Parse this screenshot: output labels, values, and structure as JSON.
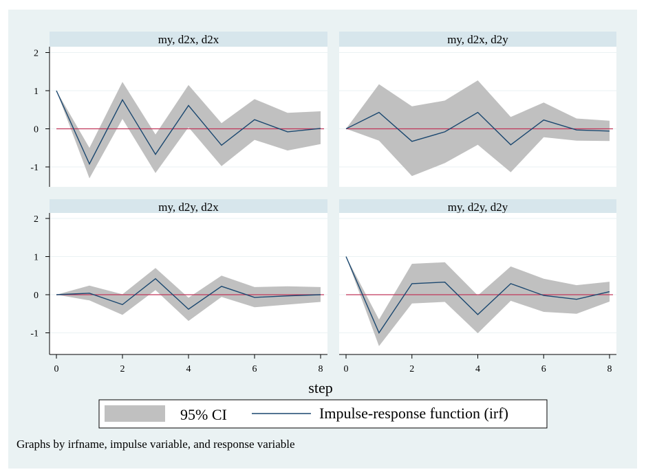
{
  "chart_data": {
    "type": "line",
    "note": "Graphs by irfname, impulse variable, and response variable",
    "xlabel": "step",
    "xlim": [
      0,
      8
    ],
    "ylim": [
      -1.55,
      2.2
    ],
    "x_ticks": [
      0,
      2,
      4,
      6,
      8
    ],
    "y_ticks": [
      -1,
      0,
      1,
      2
    ],
    "legend": {
      "position": "bottom",
      "entries": [
        {
          "label": "95% CI",
          "kind": "area",
          "color": "#c0c0c0"
        },
        {
          "label": "Impulse-response function (irf)",
          "kind": "line",
          "color": "#1a476f"
        }
      ]
    },
    "colors": {
      "ci": "#c0c0c0",
      "irf": "#1a476f",
      "zero_line": "#c0365a",
      "strip": "#d7e6ec",
      "plot_bg": "#ffffff",
      "outer_bg": "#eaf2f3"
    },
    "panels": [
      {
        "title": "my, d2x, d2x",
        "x": [
          0,
          1,
          2,
          3,
          4,
          5,
          6,
          7,
          8
        ],
        "irf": [
          1.0,
          -0.92,
          0.76,
          -0.67,
          0.61,
          -0.43,
          0.24,
          -0.08,
          0.01
        ],
        "ci_upper": [
          1.0,
          -0.5,
          1.23,
          -0.15,
          1.15,
          0.15,
          0.78,
          0.42,
          0.46
        ],
        "ci_lower": [
          1.0,
          -1.3,
          0.26,
          -1.16,
          0.04,
          -0.98,
          -0.29,
          -0.57,
          -0.4
        ]
      },
      {
        "title": "my, d2x, d2y",
        "x": [
          0,
          1,
          2,
          3,
          4,
          5,
          6,
          7,
          8
        ],
        "irf": [
          0.0,
          0.43,
          -0.33,
          -0.08,
          0.43,
          -0.42,
          0.23,
          -0.03,
          -0.06
        ],
        "ci_upper": [
          0.0,
          1.17,
          0.59,
          0.74,
          1.27,
          0.31,
          0.69,
          0.27,
          0.21
        ],
        "ci_lower": [
          0.0,
          -0.31,
          -1.24,
          -0.9,
          -0.42,
          -1.14,
          -0.22,
          -0.31,
          -0.32
        ]
      },
      {
        "title": "my, d2y, d2x",
        "x": [
          0,
          1,
          2,
          3,
          4,
          5,
          6,
          7,
          8
        ],
        "irf": [
          0.0,
          0.04,
          -0.26,
          0.42,
          -0.38,
          0.22,
          -0.07,
          -0.03,
          0.0
        ],
        "ci_upper": [
          0.0,
          0.24,
          0.01,
          0.7,
          -0.08,
          0.5,
          0.2,
          0.22,
          0.2
        ],
        "ci_lower": [
          0.0,
          -0.15,
          -0.53,
          0.12,
          -0.69,
          -0.06,
          -0.33,
          -0.26,
          -0.19
        ]
      },
      {
        "title": "my, d2y, d2y",
        "x": [
          0,
          1,
          2,
          3,
          4,
          5,
          6,
          7,
          8
        ],
        "irf": [
          1.0,
          -1.0,
          0.29,
          0.33,
          -0.52,
          0.29,
          -0.02,
          -0.12,
          0.08
        ],
        "ci_upper": [
          1.0,
          -0.65,
          0.81,
          0.85,
          -0.02,
          0.74,
          0.42,
          0.25,
          0.34
        ],
        "ci_lower": [
          1.0,
          -1.35,
          -0.23,
          -0.19,
          -1.01,
          -0.16,
          -0.45,
          -0.5,
          -0.18
        ]
      }
    ]
  }
}
